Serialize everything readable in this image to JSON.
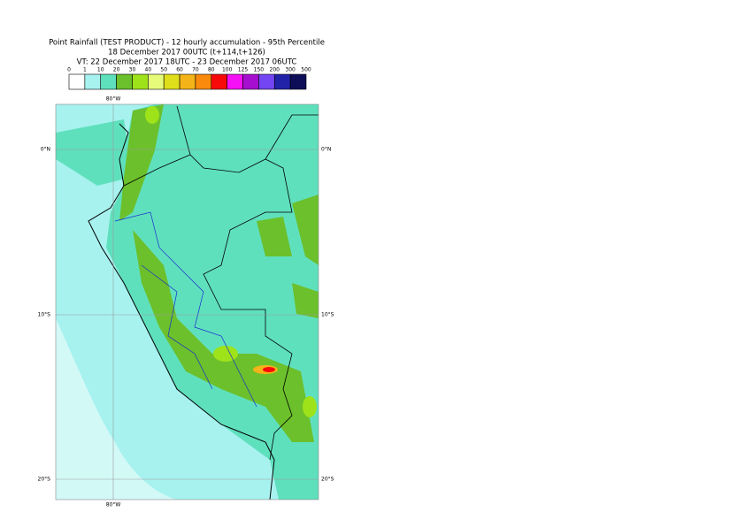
{
  "header": {
    "title": "Point Rainfall (TEST PRODUCT) - 12 hourly accumulation - 95th Percentile",
    "base_time": "18 December 2017 00UTC (t+114,t+126)",
    "valid_time": "VT: 22 December 2017 18UTC - 23 December 2017 06UTC"
  },
  "legend": {
    "labels": [
      "0",
      "1",
      "10",
      "20",
      "30",
      "40",
      "50",
      "60",
      "70",
      "80",
      "100",
      "125",
      "150",
      "200",
      "300",
      "500"
    ],
    "colors": [
      "#ffffff",
      "#a7f2ef",
      "#5fe0bd",
      "#6cc02c",
      "#9ee21a",
      "#e6fb7a",
      "#dede1a",
      "#f4b318",
      "#f98a0c",
      "#f90a0a",
      "#f510f5",
      "#a60fcf",
      "#7445f2",
      "#2222a8",
      "#0d0d58"
    ]
  },
  "map": {
    "lon_labels": [
      "80°W"
    ],
    "lat_labels": [
      "0°N",
      "10°S",
      "20°S"
    ]
  }
}
